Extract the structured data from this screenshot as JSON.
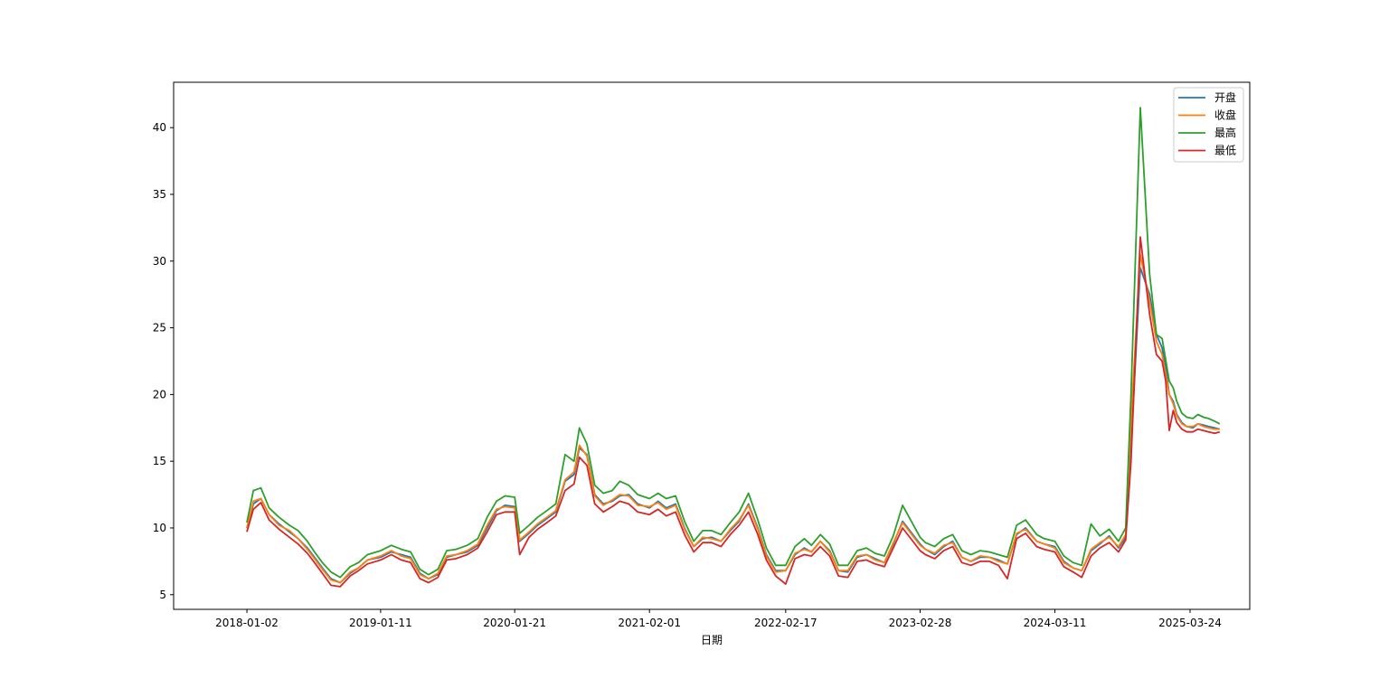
{
  "chart_data": {
    "type": "line",
    "xlabel": "日期",
    "ylabel": "",
    "ylim": [
      3.9,
      43.4
    ],
    "yticks": [
      5,
      10,
      15,
      20,
      25,
      30,
      35,
      40
    ],
    "xticks": [
      "2018-01-02",
      "2019-01-11",
      "2020-01-21",
      "2021-02-01",
      "2022-02-17",
      "2023-02-28",
      "2024-03-11",
      "2025-03-24"
    ],
    "x_range": [
      "2017-06-11",
      "2025-09-07"
    ],
    "grid": false,
    "legend_position": "top-right",
    "dates": [
      "2018-01-02",
      "2018-01-20",
      "2018-02-10",
      "2018-03-05",
      "2018-04-02",
      "2018-05-01",
      "2018-05-25",
      "2018-06-20",
      "2018-07-10",
      "2018-08-01",
      "2018-08-25",
      "2018-09-20",
      "2018-10-18",
      "2018-11-10",
      "2018-12-05",
      "2019-01-11",
      "2019-02-10",
      "2019-03-10",
      "2019-04-05",
      "2019-05-01",
      "2019-05-25",
      "2019-06-20",
      "2019-07-15",
      "2019-08-10",
      "2019-09-10",
      "2019-10-10",
      "2019-11-05",
      "2019-12-01",
      "2019-12-25",
      "2020-01-21",
      "2020-02-04",
      "2020-03-01",
      "2020-03-25",
      "2020-04-20",
      "2020-05-15",
      "2020-06-10",
      "2020-07-05",
      "2020-07-20",
      "2020-08-10",
      "2020-09-01",
      "2020-09-25",
      "2020-10-20",
      "2020-11-10",
      "2020-12-05",
      "2020-12-30",
      "2021-02-01",
      "2021-02-25",
      "2021-03-20",
      "2021-04-15",
      "2021-05-10",
      "2021-06-05",
      "2021-06-30",
      "2021-07-25",
      "2021-08-20",
      "2021-09-15",
      "2021-10-10",
      "2021-11-05",
      "2021-12-01",
      "2021-12-25",
      "2022-01-20",
      "2022-02-17",
      "2022-03-15",
      "2022-04-10",
      "2022-04-30",
      "2022-05-25",
      "2022-06-20",
      "2022-07-15",
      "2022-08-10",
      "2022-09-05",
      "2022-10-01",
      "2022-10-25",
      "2022-11-20",
      "2022-12-15",
      "2023-01-10",
      "2023-02-28",
      "2023-03-15",
      "2023-04-10",
      "2023-05-05",
      "2023-05-30",
      "2023-06-25",
      "2023-07-20",
      "2023-08-15",
      "2023-09-10",
      "2023-10-05",
      "2023-10-30",
      "2023-11-25",
      "2023-12-20",
      "2024-01-20",
      "2024-02-10",
      "2024-03-11",
      "2024-04-05",
      "2024-05-01",
      "2024-05-25",
      "2024-06-20",
      "2024-07-15",
      "2024-08-10",
      "2024-09-05",
      "2024-09-25",
      "2024-10-10",
      "2024-11-05",
      "2024-12-01",
      "2024-12-20",
      "2025-01-05",
      "2025-01-15",
      "2025-01-25",
      "2025-02-05",
      "2025-02-15",
      "2025-03-01",
      "2025-03-15",
      "2025-04-01",
      "2025-04-15",
      "2025-05-01",
      "2025-05-15",
      "2025-06-01",
      "2025-06-15"
    ],
    "series": [
      {
        "name": "开盘",
        "color": "#1f77b4",
        "values": [
          10.0,
          11.8,
          12.2,
          11.0,
          10.3,
          9.7,
          9.2,
          8.5,
          7.8,
          7.0,
          6.2,
          5.9,
          6.6,
          7.0,
          7.6,
          7.8,
          8.2,
          8.0,
          7.8,
          6.6,
          6.2,
          6.5,
          7.8,
          8.0,
          8.2,
          8.7,
          10.0,
          11.3,
          11.7,
          11.6,
          9.0,
          9.6,
          10.2,
          10.7,
          11.2,
          13.5,
          14.0,
          16.0,
          15.5,
          12.5,
          11.8,
          12.0,
          12.4,
          12.5,
          11.8,
          11.5,
          12.0,
          11.5,
          11.8,
          10.0,
          8.6,
          9.2,
          9.3,
          9.0,
          9.8,
          10.5,
          11.8,
          10.0,
          8.0,
          6.8,
          6.8,
          8.0,
          8.5,
          8.2,
          9.0,
          8.3,
          6.8,
          6.7,
          7.8,
          8.0,
          7.7,
          7.4,
          8.8,
          10.5,
          8.8,
          8.4,
          8.0,
          8.6,
          9.0,
          7.8,
          7.5,
          7.8,
          7.8,
          7.6,
          7.3,
          9.5,
          10.0,
          9.0,
          8.8,
          8.6,
          7.5,
          7.0,
          6.8,
          8.3,
          8.8,
          9.4,
          8.5,
          9.3,
          16.0,
          29.5,
          27.5,
          24.5,
          23.5,
          22.0,
          20.0,
          19.5,
          18.5,
          17.9,
          17.6,
          17.5,
          17.8,
          17.7,
          17.6,
          17.5,
          17.4
        ]
      },
      {
        "name": "收盘",
        "color": "#ff7f0e",
        "values": [
          10.0,
          12.0,
          12.2,
          11.0,
          10.2,
          9.8,
          9.2,
          8.4,
          7.7,
          6.9,
          6.1,
          5.9,
          6.7,
          7.0,
          7.6,
          7.9,
          8.3,
          7.9,
          7.7,
          6.5,
          6.2,
          6.6,
          7.9,
          8.0,
          8.3,
          8.8,
          10.2,
          11.4,
          11.6,
          11.5,
          9.1,
          9.7,
          10.3,
          10.8,
          11.3,
          13.6,
          14.2,
          16.2,
          15.4,
          12.4,
          11.7,
          12.1,
          12.5,
          12.4,
          11.7,
          11.6,
          11.9,
          11.4,
          11.7,
          9.9,
          8.6,
          9.3,
          9.2,
          9.0,
          9.9,
          10.6,
          11.7,
          9.9,
          7.9,
          6.7,
          6.8,
          8.1,
          8.4,
          8.2,
          9.0,
          8.2,
          6.8,
          6.8,
          7.9,
          8.0,
          7.6,
          7.4,
          8.9,
          10.4,
          8.7,
          8.4,
          8.1,
          8.7,
          8.9,
          7.8,
          7.5,
          7.9,
          7.8,
          7.5,
          7.3,
          9.6,
          9.9,
          9.0,
          8.8,
          8.5,
          7.4,
          7.0,
          6.8,
          8.4,
          8.9,
          9.3,
          8.6,
          9.5,
          18.0,
          30.5,
          27.0,
          24.0,
          23.0,
          21.5,
          20.0,
          19.3,
          18.4,
          17.8,
          17.6,
          17.6,
          17.8,
          17.6,
          17.5,
          17.4,
          17.4
        ]
      },
      {
        "name": "最高",
        "color": "#2ca02c",
        "values": [
          10.4,
          12.8,
          13.0,
          11.5,
          10.8,
          10.2,
          9.8,
          9.0,
          8.2,
          7.4,
          6.7,
          6.3,
          7.1,
          7.4,
          8.0,
          8.3,
          8.7,
          8.4,
          8.2,
          6.9,
          6.5,
          6.9,
          8.3,
          8.4,
          8.7,
          9.2,
          10.8,
          12.0,
          12.4,
          12.3,
          9.6,
          10.2,
          10.8,
          11.3,
          11.8,
          15.5,
          15.0,
          17.5,
          16.3,
          13.2,
          12.6,
          12.8,
          13.5,
          13.2,
          12.5,
          12.2,
          12.6,
          12.2,
          12.4,
          10.5,
          9.0,
          9.8,
          9.8,
          9.5,
          10.4,
          11.2,
          12.6,
          10.6,
          8.5,
          7.2,
          7.2,
          8.6,
          9.2,
          8.7,
          9.5,
          8.8,
          7.2,
          7.2,
          8.3,
          8.5,
          8.1,
          7.9,
          9.4,
          11.7,
          9.3,
          8.9,
          8.6,
          9.2,
          9.5,
          8.3,
          8.0,
          8.3,
          8.2,
          8.0,
          7.8,
          10.2,
          10.6,
          9.5,
          9.2,
          9.0,
          7.9,
          7.4,
          7.2,
          10.3,
          9.4,
          9.9,
          9.0,
          10.0,
          20.0,
          41.5,
          29.0,
          24.5,
          24.2,
          22.6,
          21.0,
          20.5,
          19.5,
          18.6,
          18.3,
          18.2,
          18.5,
          18.3,
          18.2,
          18.0,
          17.8
        ]
      },
      {
        "name": "最低",
        "color": "#d62728",
        "values": [
          9.7,
          11.4,
          11.9,
          10.6,
          9.9,
          9.3,
          8.8,
          8.1,
          7.4,
          6.6,
          5.7,
          5.6,
          6.4,
          6.8,
          7.3,
          7.6,
          8.0,
          7.6,
          7.4,
          6.2,
          5.9,
          6.3,
          7.6,
          7.7,
          8.0,
          8.5,
          9.7,
          11.0,
          11.2,
          11.2,
          8.0,
          9.3,
          9.9,
          10.4,
          10.9,
          12.8,
          13.3,
          15.3,
          14.7,
          11.8,
          11.2,
          11.6,
          12.0,
          11.8,
          11.2,
          11.0,
          11.4,
          10.9,
          11.2,
          9.5,
          8.2,
          8.9,
          8.9,
          8.6,
          9.5,
          10.2,
          11.2,
          9.5,
          7.6,
          6.4,
          5.8,
          7.7,
          8.0,
          7.9,
          8.6,
          7.9,
          6.4,
          6.3,
          7.5,
          7.6,
          7.3,
          7.1,
          8.5,
          10.0,
          8.3,
          8.0,
          7.7,
          8.3,
          8.6,
          7.4,
          7.2,
          7.5,
          7.5,
          7.2,
          6.2,
          9.2,
          9.6,
          8.6,
          8.4,
          8.2,
          7.1,
          6.7,
          6.3,
          7.9,
          8.5,
          8.9,
          8.2,
          9.1,
          15.0,
          31.8,
          26.0,
          23.0,
          22.5,
          21.0,
          17.3,
          18.8,
          17.9,
          17.4,
          17.2,
          17.2,
          17.4,
          17.3,
          17.2,
          17.1,
          17.2
        ]
      }
    ]
  }
}
